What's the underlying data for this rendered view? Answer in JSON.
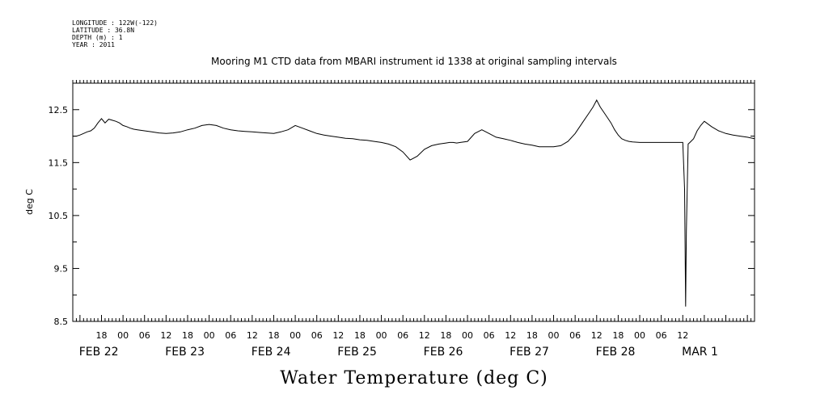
{
  "metadata": {
    "lines": [
      "LONGITUDE : 122W(-122)",
      "LATITUDE : 36.8N",
      "DEPTH (m) : 1",
      "YEAR : 2011"
    ]
  },
  "chart_data": {
    "type": "line",
    "title": "Mooring M1 CTD data from MBARI instrument id 1338 at original sampling intervals",
    "xlabel": "Water Temperature (deg C)",
    "ylabel": "deg C",
    "ylim": [
      8.5,
      13.0
    ],
    "y_ticks": [
      "8.5",
      "9.5",
      "10.5",
      "11.5",
      "12.5"
    ],
    "x_hour_ticks": [
      "18",
      "00",
      "06",
      "12",
      "18",
      "00",
      "06",
      "12",
      "18",
      "00",
      "06",
      "12",
      "18",
      "00",
      "06",
      "12",
      "18",
      "00",
      "06",
      "12",
      "18",
      "00",
      "06",
      "12",
      "18",
      "00",
      "06",
      "12"
    ],
    "x_date_labels": [
      "FEB 22",
      "FEB 23",
      "FEB 24",
      "FEB 25",
      "FEB 26",
      "FEB 27",
      "FEB 28",
      "MAR  1"
    ],
    "x_range_hours": [
      10,
      200
    ],
    "line_color": "#000000",
    "series": [
      {
        "x": [
          10,
          11,
          12,
          13,
          14,
          15,
          16,
          17,
          18,
          19,
          20,
          21,
          22,
          23,
          24,
          25,
          26,
          27,
          28,
          30,
          32,
          34,
          36,
          38,
          40,
          42,
          44,
          46,
          48,
          50,
          52,
          54,
          56,
          58,
          60,
          62,
          64,
          66,
          68,
          70,
          72,
          74,
          76,
          78,
          80,
          82,
          84,
          86,
          88,
          90,
          92,
          94,
          96,
          98,
          100,
          102,
          104,
          106,
          108,
          110,
          112,
          113,
          114,
          115,
          116,
          117,
          118,
          120,
          122,
          124,
          126,
          128,
          130,
          132,
          134,
          136,
          138,
          140,
          142,
          144,
          146,
          148,
          150,
          152,
          154,
          155,
          156,
          157,
          158,
          159,
          160,
          161,
          162,
          163,
          164,
          165,
          166,
          168,
          170,
          172,
          174,
          176,
          178,
          179,
          180,
          180.5,
          180.8,
          181,
          181.5,
          182,
          183,
          184,
          185,
          186,
          188,
          190,
          192,
          194,
          196,
          198,
          200
        ],
        "y": [
          12.0,
          12.0,
          12.02,
          12.05,
          12.08,
          12.1,
          12.15,
          12.25,
          12.33,
          12.25,
          12.32,
          12.3,
          12.28,
          12.25,
          12.2,
          12.18,
          12.15,
          12.13,
          12.12,
          12.1,
          12.08,
          12.06,
          12.05,
          12.06,
          12.08,
          12.12,
          12.15,
          12.2,
          12.22,
          12.2,
          12.15,
          12.12,
          12.1,
          12.09,
          12.08,
          12.07,
          12.06,
          12.05,
          12.08,
          12.12,
          12.2,
          12.15,
          12.1,
          12.05,
          12.02,
          12.0,
          11.98,
          11.96,
          11.95,
          11.93,
          11.92,
          11.9,
          11.88,
          11.85,
          11.8,
          11.7,
          11.55,
          11.62,
          11.75,
          11.82,
          11.85,
          11.86,
          11.87,
          11.88,
          11.88,
          11.87,
          11.88,
          11.9,
          12.05,
          12.12,
          12.05,
          11.98,
          11.95,
          11.92,
          11.88,
          11.85,
          11.83,
          11.8,
          11.8,
          11.8,
          11.82,
          11.9,
          12.05,
          12.25,
          12.45,
          12.55,
          12.68,
          12.55,
          12.45,
          12.35,
          12.25,
          12.12,
          12.02,
          11.95,
          11.92,
          11.9,
          11.89,
          11.88,
          11.88,
          11.88,
          11.88,
          11.88,
          11.88,
          11.88,
          11.88,
          11.0,
          8.78,
          10.2,
          11.85,
          11.88,
          11.95,
          12.1,
          12.2,
          12.28,
          12.18,
          12.1,
          12.05,
          12.02,
          12.0,
          11.98,
          11.95
        ]
      }
    ]
  }
}
